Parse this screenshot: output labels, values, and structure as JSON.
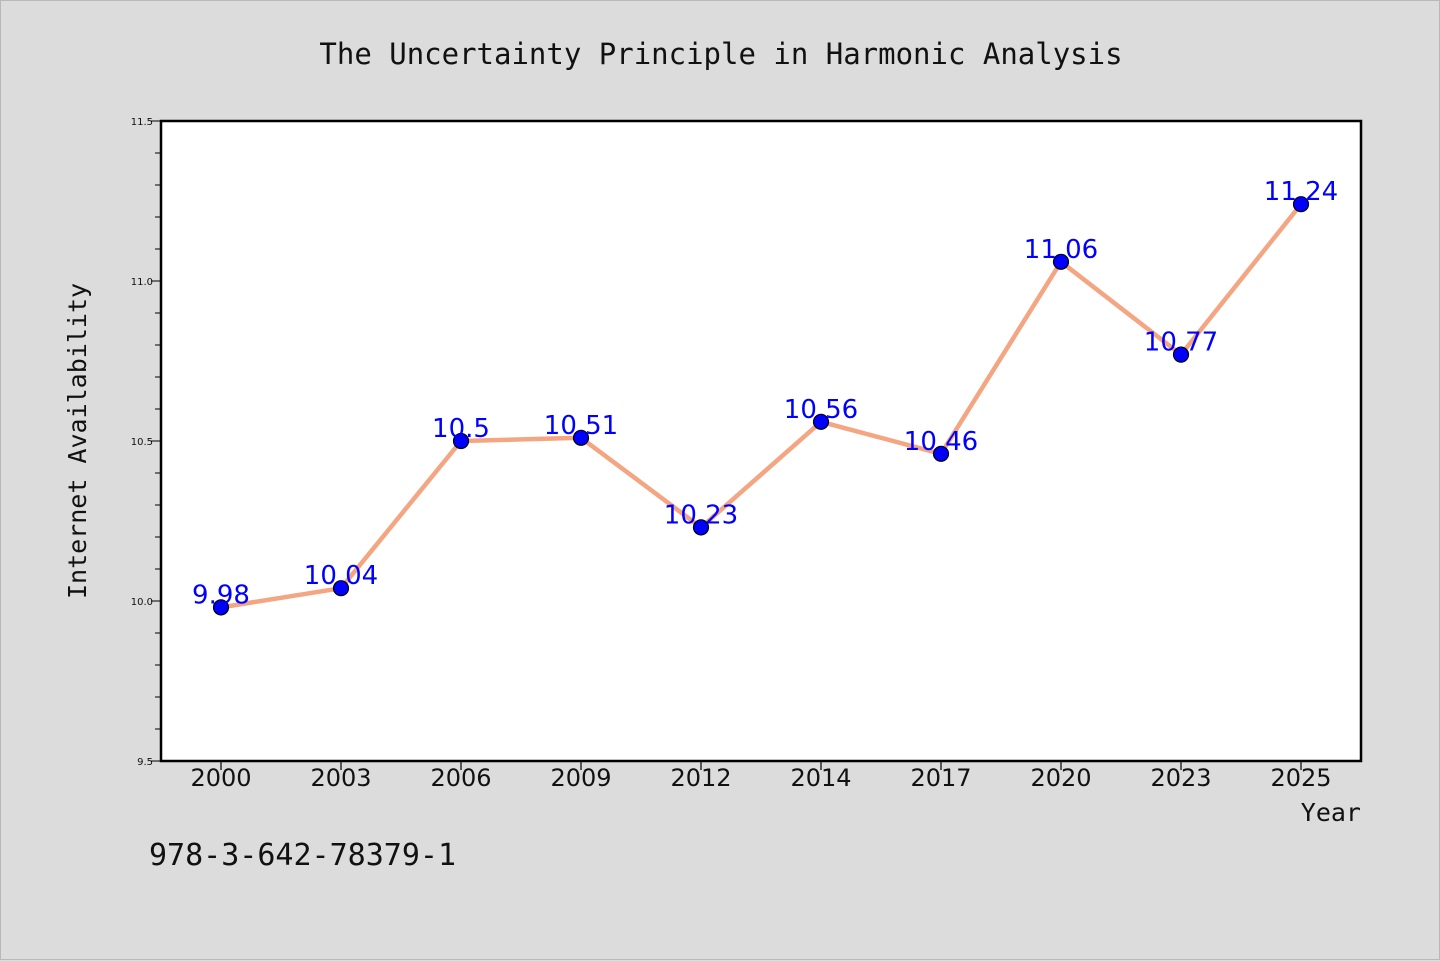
{
  "chart_data": {
    "type": "line",
    "title": "The Uncertainty Principle in Harmonic Analysis",
    "xlabel": "Year",
    "ylabel": "Internet Availability",
    "categories": [
      "2000",
      "2003",
      "2006",
      "2009",
      "2012",
      "2014",
      "2017",
      "2020",
      "2023",
      "2025"
    ],
    "series": [
      {
        "values": [
          9.98,
          10.04,
          10.5,
          10.51,
          10.23,
          10.56,
          10.46,
          11.06,
          10.77,
          11.24
        ],
        "data_labels": [
          "9.98",
          "10.04",
          "10.5",
          "10.51",
          "10.23",
          "10.56",
          "10.46",
          "11.06",
          "10.77",
          "11.24"
        ],
        "line_color": "#f4a582",
        "marker_color": "#0000ff"
      }
    ],
    "ylim": [
      9.5,
      11.5
    ],
    "y_ticks": [
      "9.5",
      "10.0",
      "10.5",
      "11.0",
      "11.5"
    ],
    "grid": false,
    "legend": "none"
  },
  "footer_text": "978-3-642-78379-1",
  "colors": {
    "background": "#dcdcdc",
    "plot_background": "#ffffff",
    "label_color": "#0000ff"
  }
}
